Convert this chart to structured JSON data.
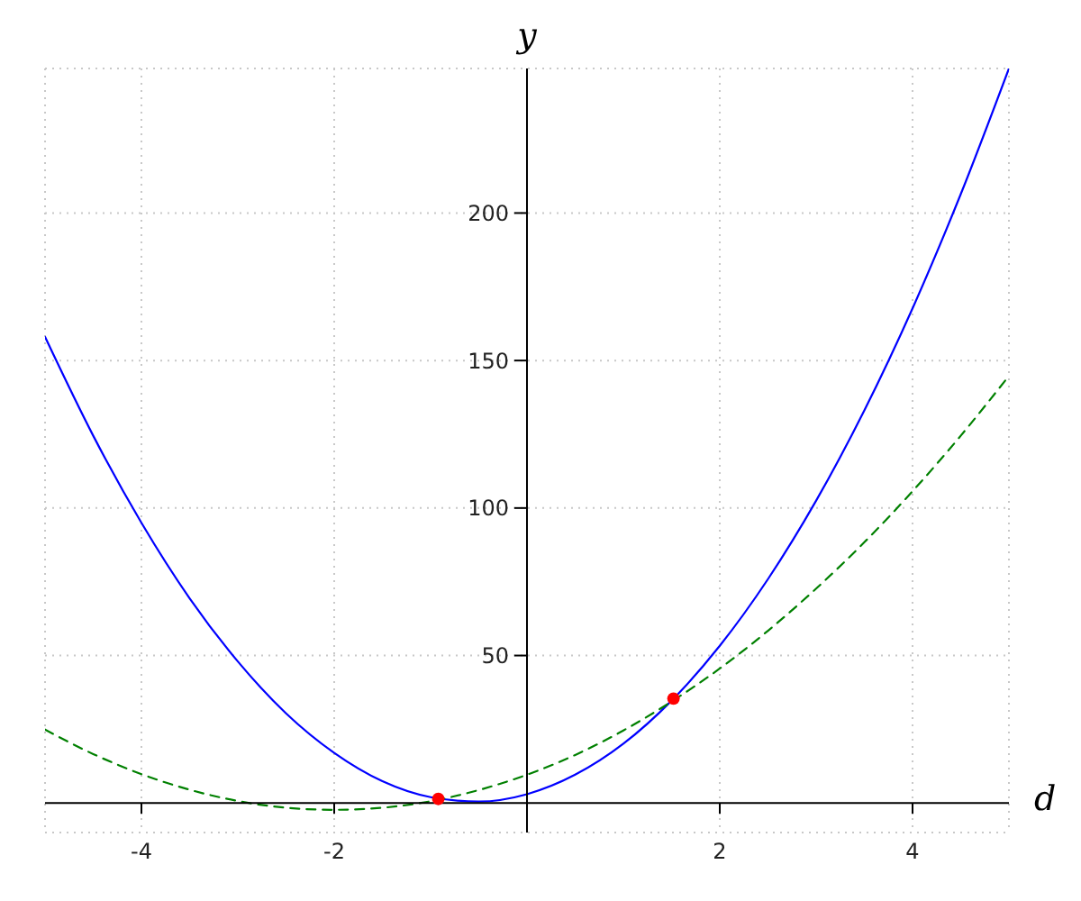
{
  "chart_data": {
    "type": "line",
    "xlabel": "d",
    "ylabel": "y",
    "xlim": [
      -5,
      5
    ],
    "ylim": [
      -10,
      249
    ],
    "xticks": [
      -4,
      -2,
      2,
      4
    ],
    "yticks": [
      50,
      100,
      150,
      200
    ],
    "grid": true,
    "series": [
      {
        "color": "#0000ff",
        "line_style": "solid",
        "x": [
          -5,
          -4.5,
          -4,
          -3.5,
          -3,
          -2.5,
          -2,
          -1.5,
          -1,
          -0.5,
          0,
          0.5,
          1,
          1.5,
          2,
          2.5,
          3,
          3.5,
          4,
          4.5,
          5
        ],
        "values": [
          158,
          124.5,
          95,
          69.4,
          48,
          30.4,
          17,
          7.4,
          2,
          0.5,
          3,
          9.6,
          20.1,
          34.7,
          53.3,
          75.9,
          102.5,
          133.1,
          167.7,
          206.4,
          249
        ]
      },
      {
        "color": "#008000",
        "line_style": "dashed",
        "x": [
          -5,
          -4.5,
          -4,
          -3.5,
          -3,
          -2.5,
          -2,
          -1.5,
          -1,
          -0.5,
          0,
          0.5,
          1,
          1.5,
          2,
          2.5,
          3,
          3.5,
          4,
          4.5,
          5
        ],
        "values": [
          24.9,
          16.6,
          9.8,
          4.5,
          0.7,
          -1.6,
          -2.3,
          -1.6,
          0.6,
          4.4,
          9.6,
          16.3,
          24.6,
          34.4,
          45.6,
          58.4,
          72.7,
          88.4,
          105.7,
          124.5,
          144.8
        ]
      },
      {
        "type": "scatter",
        "color": "#ff0000",
        "marker": "circle",
        "x": [
          -0.92,
          1.52
        ],
        "values": [
          1.4,
          35.4
        ]
      }
    ]
  }
}
